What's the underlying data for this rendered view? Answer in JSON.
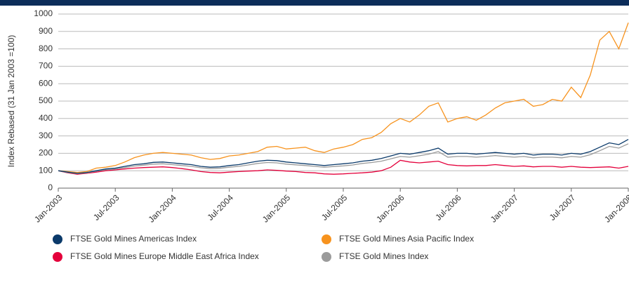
{
  "chart_data": {
    "type": "line",
    "y_label": "Index Rebased (31 Jan 2003 =100)",
    "categories": [
      "Jan-2003",
      null,
      null,
      null,
      null,
      null,
      "Jul-2003",
      null,
      null,
      null,
      null,
      null,
      "Jan-2004",
      null,
      null,
      null,
      null,
      null,
      "Jul-2004",
      null,
      null,
      null,
      null,
      null,
      "Jan-2005",
      null,
      null,
      null,
      null,
      null,
      "Jul-2005",
      null,
      null,
      null,
      null,
      null,
      "Jan-2006",
      null,
      null,
      null,
      null,
      null,
      "Jul-2006",
      null,
      null,
      null,
      null,
      null,
      "Jan-2007",
      null,
      null,
      null,
      null,
      null,
      "Jul-2007",
      null,
      null,
      null,
      null,
      null,
      "Jan-2008"
    ],
    "series": [
      {
        "name": "FTSE Gold Mines Americas Index",
        "color": "#0b3a6a",
        "values": [
          100,
          92,
          85,
          90,
          100,
          110,
          115,
          125,
          135,
          140,
          148,
          150,
          145,
          140,
          135,
          125,
          120,
          122,
          130,
          135,
          145,
          155,
          160,
          158,
          150,
          145,
          140,
          135,
          130,
          135,
          140,
          145,
          155,
          160,
          170,
          185,
          200,
          195,
          205,
          215,
          230,
          195,
          200,
          200,
          195,
          200,
          205,
          200,
          195,
          200,
          190,
          195,
          195,
          190,
          200,
          195,
          210,
          235,
          260,
          250,
          280
        ]
      },
      {
        "name": "FTSE Gold Mines Asia Pacific Index",
        "color": "#f7931e",
        "values": [
          100,
          95,
          90,
          95,
          115,
          120,
          130,
          150,
          175,
          190,
          200,
          205,
          200,
          195,
          190,
          175,
          165,
          170,
          185,
          190,
          200,
          210,
          235,
          240,
          225,
          230,
          235,
          215,
          205,
          225,
          235,
          250,
          280,
          290,
          320,
          370,
          400,
          380,
          420,
          470,
          490,
          380,
          400,
          410,
          390,
          420,
          460,
          490,
          500,
          510,
          470,
          480,
          510,
          500,
          580,
          520,
          650,
          850,
          900,
          800,
          950
        ]
      },
      {
        "name": "FTSE Gold Mines Europe Middle East Africa Index",
        "color": "#e4003b",
        "values": [
          100,
          88,
          80,
          85,
          92,
          100,
          105,
          110,
          115,
          118,
          120,
          122,
          118,
          112,
          105,
          95,
          90,
          88,
          92,
          95,
          98,
          100,
          105,
          102,
          98,
          95,
          90,
          88,
          82,
          80,
          82,
          85,
          88,
          92,
          100,
          120,
          160,
          150,
          145,
          150,
          155,
          135,
          130,
          128,
          130,
          130,
          135,
          130,
          125,
          128,
          122,
          125,
          125,
          120,
          125,
          120,
          118,
          120,
          122,
          115,
          125
        ]
      },
      {
        "name": "FTSE Gold Mines Index",
        "color": "#9b9b9b",
        "values": [
          100,
          90,
          83,
          88,
          97,
          105,
          110,
          118,
          127,
          132,
          138,
          140,
          135,
          130,
          125,
          117,
          112,
          114,
          120,
          125,
          133,
          142,
          147,
          145,
          138,
          134,
          130,
          125,
          120,
          124,
          128,
          133,
          142,
          147,
          155,
          168,
          182,
          178,
          186,
          195,
          210,
          178,
          182,
          182,
          178,
          182,
          187,
          182,
          178,
          182,
          174,
          178,
          178,
          174,
          182,
          178,
          192,
          215,
          240,
          230,
          255
        ]
      }
    ],
    "ylim": [
      0,
      1000
    ],
    "yticks": [
      0,
      100,
      200,
      300,
      400,
      500,
      600,
      700,
      800,
      900,
      1000
    ],
    "grid": true
  }
}
